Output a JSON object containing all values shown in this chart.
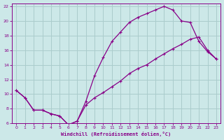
{
  "xlabel": "Windchill (Refroidissement éolien,°C)",
  "bg_color": "#cce8e8",
  "grid_color": "#aacccc",
  "line_color": "#880088",
  "xlim": [
    -0.5,
    23.5
  ],
  "ylim": [
    6,
    22.4
  ],
  "xticks": [
    0,
    1,
    2,
    3,
    4,
    5,
    6,
    7,
    8,
    9,
    10,
    11,
    12,
    13,
    14,
    15,
    16,
    17,
    18,
    19,
    20,
    21,
    22,
    23
  ],
  "yticks": [
    6,
    8,
    10,
    12,
    14,
    16,
    18,
    20,
    22
  ],
  "line1_x": [
    0,
    1,
    2,
    3,
    4,
    5,
    6,
    7,
    8,
    9,
    10,
    11,
    12,
    13,
    14,
    15,
    16,
    17,
    18,
    19,
    20,
    21,
    22,
    23
  ],
  "line1_y": [
    10.5,
    9.5,
    7.8,
    7.8,
    7.3,
    7.0,
    5.8,
    6.3,
    9.0,
    12.5,
    15.0,
    17.2,
    18.5,
    19.8,
    20.5,
    21.0,
    21.5,
    22.0,
    21.5,
    20.0,
    19.8,
    17.2,
    15.8,
    14.8
  ],
  "line2_x": [
    0,
    1,
    2,
    3,
    4,
    5,
    6,
    7,
    8,
    9,
    10,
    11,
    12,
    13,
    14,
    15,
    16,
    17,
    18,
    19,
    20,
    21,
    22,
    23
  ],
  "line2_y": [
    10.5,
    9.5,
    7.8,
    7.8,
    7.3,
    7.0,
    5.8,
    6.3,
    8.5,
    9.5,
    10.2,
    11.0,
    11.8,
    12.8,
    13.5,
    14.0,
    14.8,
    15.5,
    16.2,
    16.8,
    17.5,
    17.8,
    16.0,
    14.8
  ]
}
